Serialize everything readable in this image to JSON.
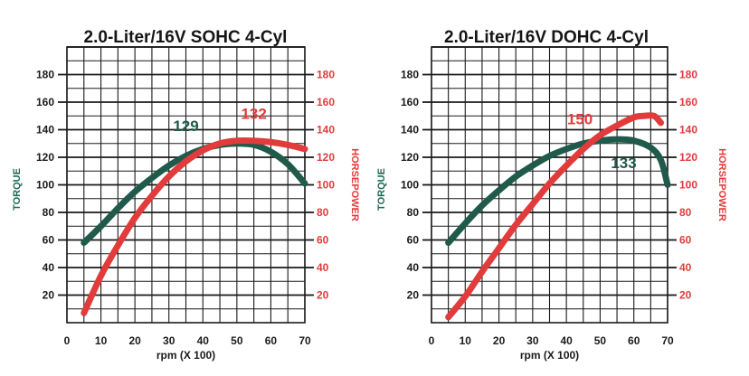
{
  "colors": {
    "torque": "#1f5a4a",
    "horsepower": "#e23b3b",
    "grid": "#1a1a1a",
    "left_axis_label": "#1f6a55",
    "right_axis_label": "#e23b3b"
  },
  "chart_data": [
    {
      "type": "line",
      "title": "2.0-Liter/16V SOHC 4-Cyl",
      "xlabel": "rpm (X 100)",
      "ylabel_left": "TORQUE",
      "ylabel_right": "HORSEPOWER",
      "xlim": [
        0,
        70
      ],
      "ylim_left": [
        0,
        200
      ],
      "ylim_right": [
        0,
        200
      ],
      "x_ticks": [
        "0",
        "10",
        "20",
        "30",
        "40",
        "50",
        "60",
        "70"
      ],
      "y_ticks_left": [
        "20",
        "40",
        "60",
        "80",
        "100",
        "120",
        "140",
        "160",
        "180"
      ],
      "y_ticks_right": [
        "20",
        "40",
        "60",
        "80",
        "100",
        "120",
        "140",
        "160",
        "180"
      ],
      "grid": true,
      "series": [
        {
          "name": "TORQUE",
          "axis": "left",
          "x": [
            5,
            10,
            15,
            20,
            25,
            30,
            35,
            40,
            45,
            50,
            55,
            60,
            65,
            70
          ],
          "y": [
            58,
            70,
            83,
            95,
            105,
            114,
            121,
            126,
            129,
            130,
            129,
            124,
            115,
            101
          ]
        },
        {
          "name": "HORSEPOWER",
          "axis": "right",
          "x": [
            5,
            10,
            15,
            20,
            25,
            30,
            35,
            40,
            45,
            50,
            55,
            60,
            65,
            70
          ],
          "y": [
            7,
            34,
            56,
            76,
            92,
            106,
            117,
            125,
            130,
            132,
            132,
            131,
            129,
            126
          ]
        }
      ],
      "annotations": [
        {
          "text": "129",
          "x": 35,
          "y": 139,
          "series": "TORQUE"
        },
        {
          "text": "132",
          "x": 55,
          "y": 148,
          "series": "HORSEPOWER"
        }
      ]
    },
    {
      "type": "line",
      "title": "2.0-Liter/16V DOHC 4-Cyl",
      "xlabel": "rpm (X 100)",
      "ylabel_left": "TORQUE",
      "ylabel_right": "HORSEPOWER",
      "xlim": [
        0,
        70
      ],
      "ylim_left": [
        0,
        200
      ],
      "ylim_right": [
        0,
        200
      ],
      "x_ticks": [
        "0",
        "10",
        "20",
        "30",
        "40",
        "50",
        "60",
        "70"
      ],
      "y_ticks_left": [
        "20",
        "40",
        "60",
        "80",
        "100",
        "120",
        "140",
        "160",
        "180"
      ],
      "y_ticks_right": [
        "20",
        "40",
        "60",
        "80",
        "100",
        "120",
        "140",
        "160",
        "180"
      ],
      "grid": true,
      "series": [
        {
          "name": "TORQUE",
          "axis": "left",
          "x": [
            5,
            10,
            15,
            20,
            25,
            30,
            35,
            40,
            45,
            50,
            55,
            60,
            65,
            68,
            70
          ],
          "y": [
            58,
            72,
            85,
            96,
            106,
            114,
            121,
            126,
            130,
            132,
            133,
            132,
            127,
            118,
            100
          ]
        },
        {
          "name": "HORSEPOWER",
          "axis": "right",
          "x": [
            5,
            10,
            15,
            20,
            25,
            30,
            35,
            40,
            45,
            50,
            55,
            60,
            63,
            66,
            68
          ],
          "y": [
            4,
            19,
            37,
            54,
            71,
            86,
            101,
            114,
            126,
            136,
            143,
            149,
            150,
            150,
            145
          ]
        }
      ],
      "annotations": [
        {
          "text": "150",
          "x": 44,
          "y": 144,
          "series": "HORSEPOWER"
        },
        {
          "text": "133",
          "x": 57,
          "y": 112,
          "series": "TORQUE"
        }
      ]
    }
  ]
}
